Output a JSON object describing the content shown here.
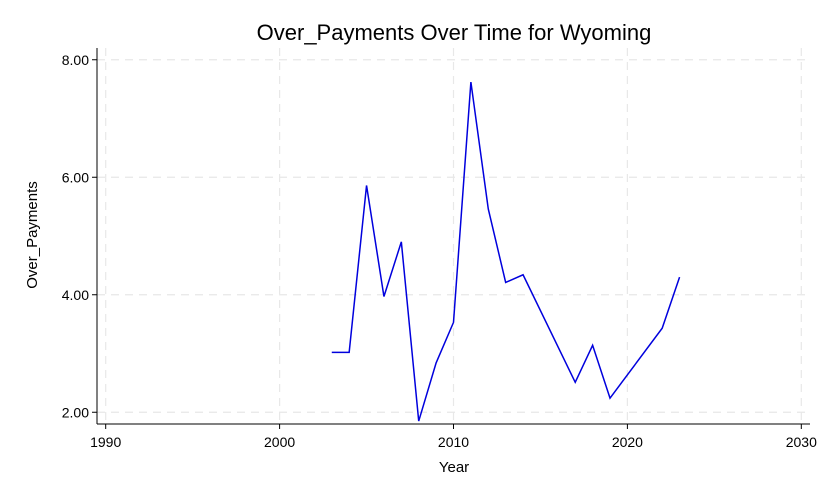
{
  "chart_data": {
    "type": "line",
    "title": "Over_Payments Over Time for Wyoming",
    "xlabel": "Year",
    "ylabel": "Over_Payments",
    "xlim": [
      1989.5,
      2030.5
    ],
    "ylim": [
      1.8,
      8.2
    ],
    "xticks": [
      1990,
      2000,
      2010,
      2020,
      2030
    ],
    "xtick_labels": [
      "1990",
      "2000",
      "2010",
      "2020",
      "2030"
    ],
    "yticks": [
      2,
      4,
      6,
      8
    ],
    "ytick_labels": [
      "2.00",
      "4.00",
      "6.00",
      "8.00"
    ],
    "grid": true,
    "series": [
      {
        "color": "#0000dd",
        "x": [
          2003,
          2004,
          2005,
          2006,
          2007,
          2008,
          2009,
          2010,
          2011,
          2012,
          2013,
          2014,
          2017,
          2018,
          2019,
          2022,
          2023
        ],
        "y": [
          3.02,
          3.02,
          5.86,
          3.97,
          4.9,
          1.85,
          2.84,
          3.53,
          7.62,
          5.46,
          4.21,
          4.34,
          2.51,
          3.14,
          2.24,
          3.43,
          4.3
        ]
      }
    ]
  }
}
